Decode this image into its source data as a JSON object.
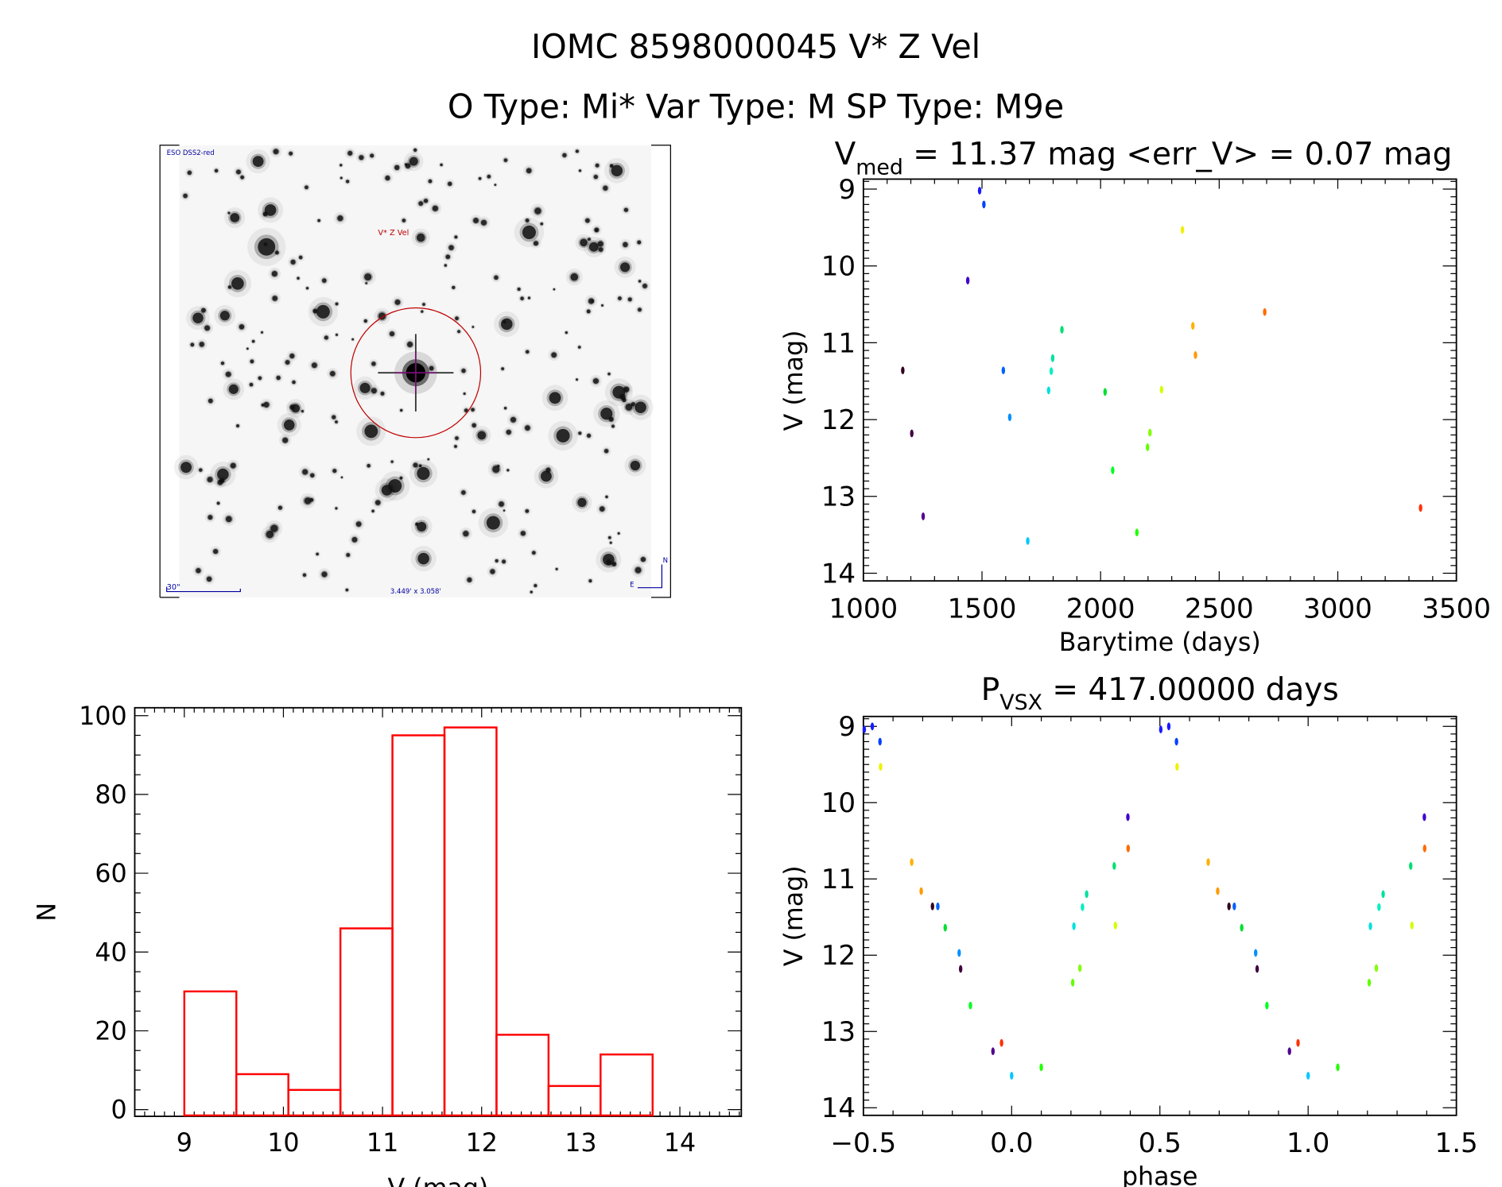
{
  "header": {
    "title": "IOMC 8598000045    V* Z Vel",
    "subtitle": "O Type: Mi*   Var Type: M   SP Type: M9e"
  },
  "image_panel": {
    "survey_label": "ESO DSS2-red",
    "target_label": "V* Z Vel",
    "scale_label": "30\"",
    "fov_label": "3.449' x 3.058'",
    "north_label": "N",
    "east_label": "E",
    "marker_color": "#c00000",
    "overlay_color": "#0000a0"
  },
  "chart_data": [
    {
      "id": "histogram",
      "type": "bar",
      "title": "",
      "xlabel": "V (mag)",
      "ylabel": "N",
      "xlim": [
        8.5,
        14.62
      ],
      "ylim": [
        0,
        100
      ],
      "xticks": [
        "9",
        "10",
        "11",
        "12",
        "13",
        "14"
      ],
      "yticks": [
        "0",
        "20",
        "40",
        "60",
        "80",
        "100"
      ],
      "bin_edges": [
        9.0,
        9.525,
        10.05,
        10.575,
        11.1,
        11.625,
        12.15,
        12.675,
        13.2,
        13.725
      ],
      "values": [
        30,
        9,
        5,
        46,
        95,
        97,
        19,
        6,
        14
      ],
      "color": "#ff0000"
    },
    {
      "id": "lightcurve",
      "type": "scatter",
      "title": "V",
      "title_sub": "med",
      "title_rest": " = 11.37 mag <err_V> = 0.07 mag",
      "xlabel": "Barytime (days)",
      "ylabel": "V (mag)",
      "xlim": [
        1000,
        3500
      ],
      "ylim": [
        14.1,
        8.87
      ],
      "xticks": [
        "1000",
        "1500",
        "2000",
        "2500",
        "3000",
        "3500"
      ],
      "yticks": [
        "9",
        "10",
        "11",
        "12",
        "13",
        "14"
      ],
      "points": [
        {
          "t": 1490,
          "v": 9.02,
          "color": "#1a1aff"
        },
        {
          "t": 1508,
          "v": 9.2,
          "color": "#0040ff"
        },
        {
          "t": 2345,
          "v": 9.53,
          "color": "#f0f000"
        },
        {
          "t": 1440,
          "v": 10.19,
          "color": "#4000d0"
        },
        {
          "t": 2692,
          "v": 10.6,
          "color": "#ff6a00"
        },
        {
          "t": 2389,
          "v": 10.78,
          "color": "#ffb000"
        },
        {
          "t": 1837,
          "v": 10.83,
          "color": "#00e070"
        },
        {
          "t": 2400,
          "v": 11.16,
          "color": "#ff9a00"
        },
        {
          "t": 1798,
          "v": 11.2,
          "color": "#00e0a0"
        },
        {
          "t": 1166,
          "v": 11.36,
          "color": "#300020"
        },
        {
          "t": 1590,
          "v": 11.36,
          "color": "#0060ff"
        },
        {
          "t": 1792,
          "v": 11.37,
          "color": "#00f0c0"
        },
        {
          "t": 1781,
          "v": 11.62,
          "color": "#00e0e0"
        },
        {
          "t": 2019,
          "v": 11.64,
          "color": "#00e030"
        },
        {
          "t": 2257,
          "v": 11.61,
          "color": "#d0ff00"
        },
        {
          "t": 1617,
          "v": 11.97,
          "color": "#0090ff"
        },
        {
          "t": 1204,
          "v": 12.18,
          "color": "#400040"
        },
        {
          "t": 2208,
          "v": 12.17,
          "color": "#80ff00"
        },
        {
          "t": 2198,
          "v": 12.36,
          "color": "#60ff00"
        },
        {
          "t": 2051,
          "v": 12.66,
          "color": "#00ff20"
        },
        {
          "t": 3349,
          "v": 13.15,
          "color": "#ff3000"
        },
        {
          "t": 1252,
          "v": 13.26,
          "color": "#500090"
        },
        {
          "t": 2153,
          "v": 13.47,
          "color": "#20ff00"
        },
        {
          "t": 1693,
          "v": 13.58,
          "color": "#00c8ff"
        }
      ]
    },
    {
      "id": "phased",
      "type": "scatter",
      "title": "P",
      "title_sub": "VSX",
      "title_rest": " = 417.00000 days",
      "xlabel": "phase",
      "ylabel": "V (mag)",
      "xlim": [
        -0.5,
        1.5
      ],
      "ylim": [
        14.1,
        8.87
      ],
      "xticks": [
        "−0.5",
        "0.0",
        "0.5",
        "1.0",
        "1.5"
      ],
      "yticks": [
        "9",
        "10",
        "11",
        "12",
        "13",
        "14"
      ],
      "points": [
        {
          "phase": -0.497,
          "v": 9.04,
          "color": "#1a1aff"
        },
        {
          "phase": -0.47,
          "v": 9.0,
          "color": "#1a1aff"
        },
        {
          "phase": -0.444,
          "v": 9.2,
          "color": "#0040ff"
        },
        {
          "phase": -0.442,
          "v": 9.53,
          "color": "#f0f000"
        },
        {
          "phase": 0.392,
          "v": 10.19,
          "color": "#4000d0"
        },
        {
          "phase": 0.393,
          "v": 10.6,
          "color": "#ff6a00"
        },
        {
          "phase": -0.337,
          "v": 10.78,
          "color": "#ffb000"
        },
        {
          "phase": 0.346,
          "v": 10.83,
          "color": "#00e070"
        },
        {
          "phase": -0.305,
          "v": 11.16,
          "color": "#ff9a00"
        },
        {
          "phase": 0.253,
          "v": 11.2,
          "color": "#00e0a0"
        },
        {
          "phase": -0.267,
          "v": 11.36,
          "color": "#300020"
        },
        {
          "phase": -0.249,
          "v": 11.36,
          "color": "#0060ff"
        },
        {
          "phase": 0.239,
          "v": 11.37,
          "color": "#00f0c0"
        },
        {
          "phase": 0.21,
          "v": 11.62,
          "color": "#00e0e0"
        },
        {
          "phase": -0.224,
          "v": 11.64,
          "color": "#00e030"
        },
        {
          "phase": 0.35,
          "v": 11.61,
          "color": "#d0ff00"
        },
        {
          "phase": -0.177,
          "v": 11.97,
          "color": "#0090ff"
        },
        {
          "phase": -0.172,
          "v": 12.18,
          "color": "#400040"
        },
        {
          "phase": 0.23,
          "v": 12.17,
          "color": "#80ff00"
        },
        {
          "phase": 0.206,
          "v": 12.36,
          "color": "#60ff00"
        },
        {
          "phase": -0.139,
          "v": 12.66,
          "color": "#00ff20"
        },
        {
          "phase": -0.034,
          "v": 13.15,
          "color": "#ff3000"
        },
        {
          "phase": -0.063,
          "v": 13.26,
          "color": "#500090"
        },
        {
          "phase": 0.1,
          "v": 13.47,
          "color": "#20ff00"
        },
        {
          "phase": 0.0,
          "v": 13.58,
          "color": "#00c8ff"
        }
      ]
    }
  ]
}
